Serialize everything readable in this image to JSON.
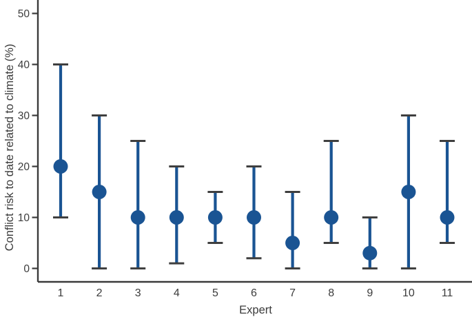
{
  "chart_data": {
    "type": "errorbar",
    "title": "",
    "xlabel": "Expert",
    "ylabel": "Conflict risk to date related to climate (%)",
    "categories": [
      "1",
      "2",
      "3",
      "4",
      "5",
      "6",
      "7",
      "8",
      "9",
      "10",
      "11"
    ],
    "points": [
      {
        "expert": "1",
        "value": 20,
        "low": 10,
        "high": 40
      },
      {
        "expert": "2",
        "value": 15,
        "low": 0,
        "high": 30
      },
      {
        "expert": "3",
        "value": 10,
        "low": 0,
        "high": 25
      },
      {
        "expert": "4",
        "value": 10,
        "low": 1,
        "high": 20
      },
      {
        "expert": "5",
        "value": 10,
        "low": 5,
        "high": 15
      },
      {
        "expert": "6",
        "value": 10,
        "low": 2,
        "high": 20
      },
      {
        "expert": "7",
        "value": 5,
        "low": 0,
        "high": 15
      },
      {
        "expert": "8",
        "value": 10,
        "low": 5,
        "high": 25
      },
      {
        "expert": "9",
        "value": 3,
        "low": 0,
        "high": 10
      },
      {
        "expert": "10",
        "value": 15,
        "low": 0,
        "high": 30
      },
      {
        "expert": "11",
        "value": 10,
        "low": 5,
        "high": 25
      }
    ],
    "yticks": [
      0,
      10,
      20,
      30,
      40,
      50
    ],
    "ylim": [
      0,
      52
    ],
    "grid": false,
    "legend": false,
    "colors": {
      "point": "#1a5493",
      "whisker": "#1a5493",
      "cap": "#3f3f3f",
      "axis": "#3a3a3a",
      "text": "#3b3b3b"
    }
  }
}
